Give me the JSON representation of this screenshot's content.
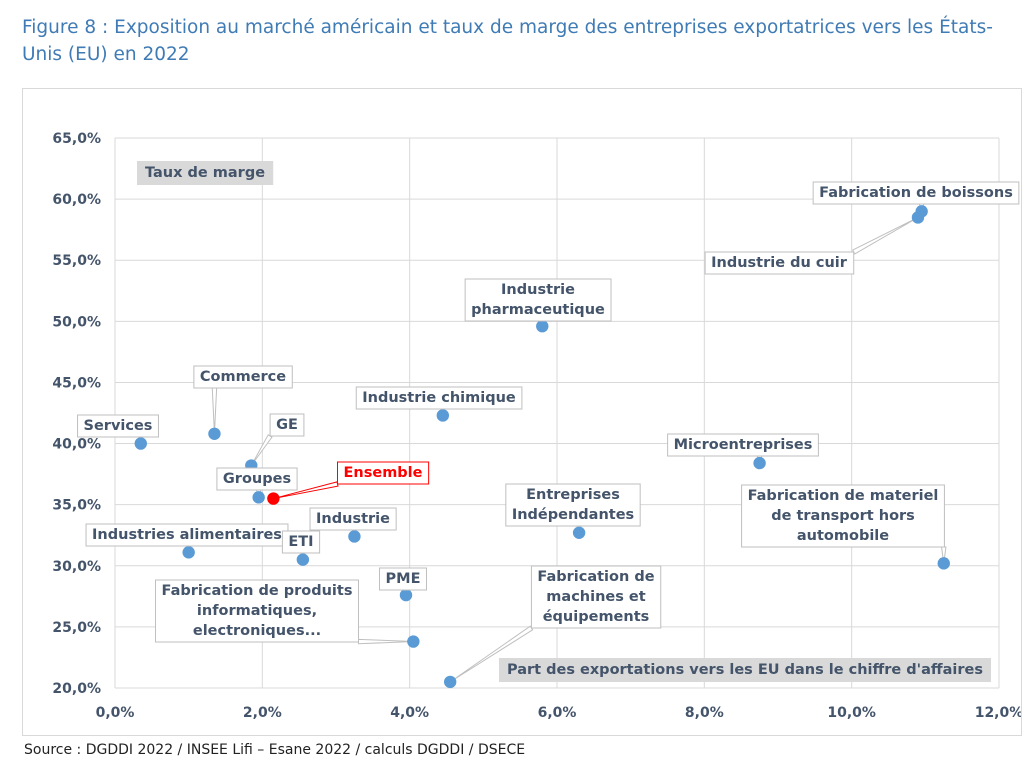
{
  "figure": {
    "title": "Figure 8 : Exposition au marché américain et taux de marge des entreprises exportatrices vers les États-Unis (EU) en 2022",
    "source": "Source : DGDDI 2022 / INSEE Lifi – Esane 2022 / calculs DGDDI / DSECE"
  },
  "colors": {
    "point": "#5b9bd5",
    "highlight": "#ff0000",
    "label_text": "#44546a",
    "grid": "#d9d9d9",
    "axis_box": "#d9d9d9"
  },
  "chart_data": {
    "type": "scatter",
    "title": "Exposition au marché américain et taux de marge des entreprises exportatrices vers les États-Unis (EU) en 2022",
    "xlabel": "Part des exportations vers les EU dans le chiffre d'affaires",
    "ylabel": "Taux de marge",
    "xlim": [
      0,
      12
    ],
    "ylim": [
      20,
      65
    ],
    "x_ticks": [
      0,
      2,
      4,
      6,
      8,
      10,
      12
    ],
    "y_ticks": [
      20,
      25,
      30,
      35,
      40,
      45,
      50,
      55,
      60,
      65
    ],
    "x_tick_labels": [
      "0,0%",
      "2,0%",
      "4,0%",
      "6,0%",
      "8,0%",
      "10,0%",
      "12,0%"
    ],
    "y_tick_labels": [
      "20,0%",
      "25,0%",
      "30,0%",
      "35,0%",
      "40,0%",
      "45,0%",
      "50,0%",
      "55,0%",
      "60,0%",
      "65,0%"
    ],
    "points": [
      {
        "name": "Services",
        "label": [
          "Services"
        ],
        "x": 0.35,
        "y": 40.0
      },
      {
        "name": "Commerce",
        "label": [
          "Commerce"
        ],
        "x": 1.35,
        "y": 40.8
      },
      {
        "name": "GE",
        "label": [
          "GE"
        ],
        "x": 1.85,
        "y": 38.2
      },
      {
        "name": "Groupes",
        "label": [
          "Groupes"
        ],
        "x": 1.95,
        "y": 35.6
      },
      {
        "name": "Ensemble",
        "label": [
          "Ensemble"
        ],
        "x": 2.15,
        "y": 35.5,
        "highlight": true
      },
      {
        "name": "Industries alimentaires",
        "label": [
          "Industries alimentaires"
        ],
        "x": 1.0,
        "y": 31.1
      },
      {
        "name": "ETI",
        "label": [
          "ETI"
        ],
        "x": 2.55,
        "y": 30.5
      },
      {
        "name": "Industrie",
        "label": [
          "Industrie"
        ],
        "x": 3.25,
        "y": 32.4
      },
      {
        "name": "PME",
        "label": [
          "PME"
        ],
        "x": 3.95,
        "y": 27.6
      },
      {
        "name": "Fabrication de produits informatiques, electroniques...",
        "label": [
          "Fabrication de produits",
          "informatiques,",
          "electroniques..."
        ],
        "x": 4.05,
        "y": 23.8
      },
      {
        "name": "Fabrication de machines et équipements",
        "label": [
          "Fabrication de",
          "machines et",
          "équipements"
        ],
        "x": 4.55,
        "y": 20.5
      },
      {
        "name": "Industrie chimique",
        "label": [
          "Industrie chimique"
        ],
        "x": 4.45,
        "y": 42.3
      },
      {
        "name": "Industrie pharmaceutique",
        "label": [
          "Industrie",
          "pharmaceutique"
        ],
        "x": 5.8,
        "y": 49.6
      },
      {
        "name": "Entreprises Indépendantes",
        "label": [
          "Entreprises",
          "Indépendantes"
        ],
        "x": 6.3,
        "y": 32.7
      },
      {
        "name": "Microentreprises",
        "label": [
          "Microentreprises"
        ],
        "x": 8.75,
        "y": 38.4
      },
      {
        "name": "Fabrication de materiel de transport hors automobile",
        "label": [
          "Fabrication de materiel",
          "de transport hors",
          "automobile"
        ],
        "x": 11.25,
        "y": 30.2
      },
      {
        "name": "Fabrication de boissons",
        "label": [
          "Fabrication de boissons"
        ],
        "x": 10.95,
        "y": 59.0
      },
      {
        "name": "Industrie du cuir",
        "label": [
          "Industrie du cuir"
        ],
        "x": 10.9,
        "y": 58.5
      }
    ]
  }
}
